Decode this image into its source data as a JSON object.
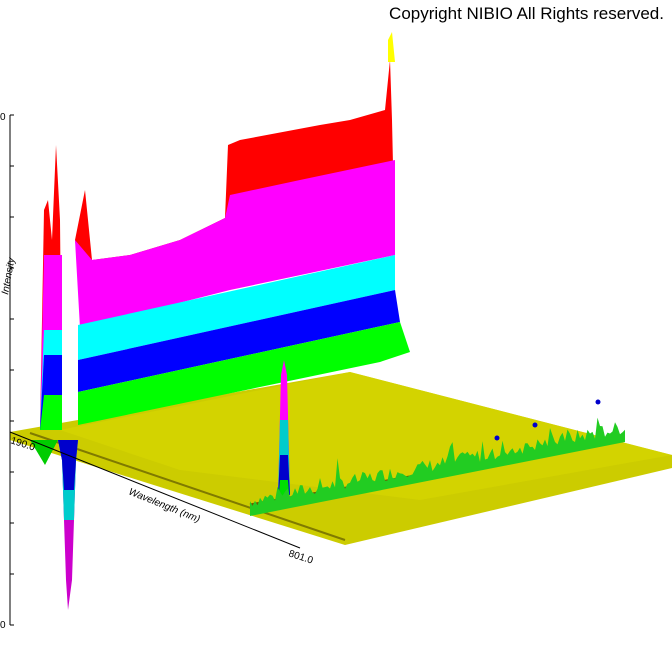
{
  "copyright": "Copyright NIBIO All Rights reserved.",
  "chart_data": {
    "type": "area",
    "xlabel": "Wavelength (nm)",
    "ylabel": "Intensity",
    "xlim": [
      190.0,
      801.0
    ],
    "x_tick_labels": [
      "190.0",
      "801.0"
    ],
    "y_tick_labels": [
      "0",
      "0"
    ],
    "colormap": [
      "#ff00ff",
      "#00cccc",
      "#00ffff",
      "#0000ff",
      "#00ff00",
      "#ff0000",
      "#ffff00"
    ],
    "surface_color": "#cccc00"
  }
}
